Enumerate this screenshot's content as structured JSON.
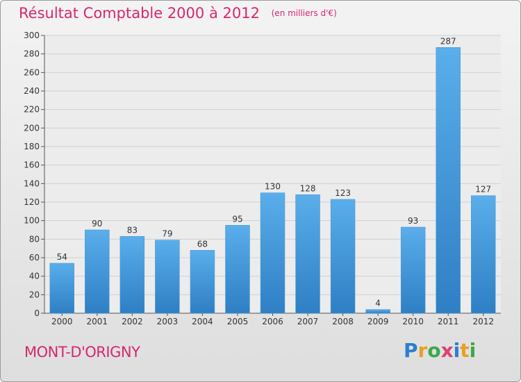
{
  "header": {
    "title": "Résultat Comptable 2000 à 2012",
    "subtitle": "(en milliers d'€)"
  },
  "footer": {
    "place": "MONT-D'ORIGNY",
    "logo_letters": [
      {
        "char": "P",
        "color": "#2a7fd0"
      },
      {
        "char": "r",
        "color": "#e8a020"
      },
      {
        "char": "o",
        "color": "#3aa84a"
      },
      {
        "char": "x",
        "color": "#e04070"
      },
      {
        "char": "i",
        "color": "#2a7fd0"
      },
      {
        "char": "t",
        "color": "#e8a020"
      },
      {
        "char": "i",
        "color": "#3aa84a"
      }
    ]
  },
  "colors": {
    "bar_top": "#5aaeea",
    "bar_bottom": "#2e7fc4",
    "grid": "#d0d0d0",
    "plot_bg": "#ececec",
    "accent": "#d6276f"
  },
  "chart_data": {
    "type": "bar",
    "title": "Résultat Comptable 2000 à 2012",
    "subtitle": "(en milliers d'€)",
    "categories": [
      "2000",
      "2001",
      "2002",
      "2003",
      "2004",
      "2005",
      "2006",
      "2007",
      "2008",
      "2009",
      "2010",
      "2011",
      "2012"
    ],
    "values": [
      54,
      90,
      83,
      79,
      68,
      95,
      130,
      128,
      123,
      4,
      93,
      287,
      127
    ],
    "ylim": [
      0,
      300
    ],
    "yticks": [
      0,
      20,
      40,
      60,
      80,
      100,
      120,
      140,
      160,
      180,
      200,
      220,
      240,
      260,
      280,
      300
    ],
    "grid": true,
    "xlabel": "",
    "ylabel": ""
  }
}
